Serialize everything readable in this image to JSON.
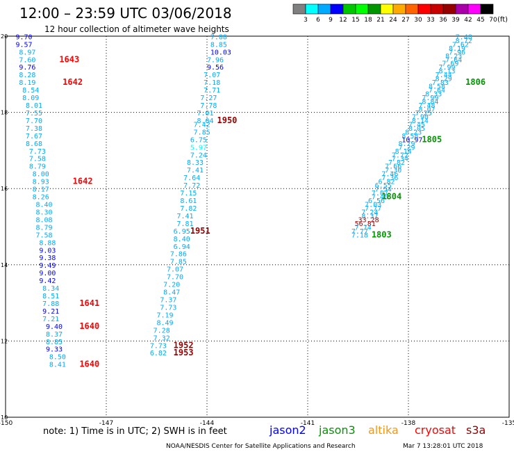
{
  "header": {
    "title": "12:00 – 23:59 UTC 03/06/2018",
    "subtitle": "12 hour collection of altimeter wave heights",
    "units": "(ft)"
  },
  "colorbar": {
    "colors": [
      "#808080",
      "#00ffff",
      "#00aaff",
      "#0000ff",
      "#00c800",
      "#00ff00",
      "#009600",
      "#ffff00",
      "#ffaa00",
      "#ff6400",
      "#ff0000",
      "#c80000",
      "#960000",
      "#aa00aa",
      "#ff00ff",
      "#000000"
    ],
    "labels": [
      "3",
      "6",
      "9",
      "12",
      "15",
      "18",
      "21",
      "24",
      "27",
      "30",
      "33",
      "36",
      "39",
      "42",
      "45",
      "70"
    ]
  },
  "footer": {
    "note": "note: 1) Time is in UTC; 2) SWH is in feet",
    "credit": "NOAA/NESDIS Center for Satellite Applications and Research",
    "timestamp": "Mar  7 13:28:01 UTC 2018",
    "satellites": [
      {
        "name": "jason2",
        "color": "#0000ff"
      },
      {
        "name": "jason3",
        "color": "#009600"
      },
      {
        "name": "altika",
        "color": "#ff9600"
      },
      {
        "name": "cryosat",
        "color": "#ff0000"
      },
      {
        "name": "s3a",
        "color": "#960000"
      }
    ]
  },
  "chart_data": {
    "type": "scatter",
    "xlim": [
      -150,
      -135
    ],
    "ylim": [
      10,
      20
    ],
    "xticks": [
      -150,
      -147,
      -144,
      -141,
      -138,
      -135
    ],
    "yticks": [
      10,
      12,
      14,
      16,
      18,
      20
    ],
    "xtick_labels": [
      "-150",
      "-147",
      "-144",
      "-141",
      "-138",
      "-135"
    ],
    "ytick_labels": [
      "10",
      "12",
      "14",
      "16",
      "18",
      "20"
    ],
    "grid": true,
    "level_colors": {
      "3": "#00ffff",
      "6": "#00aaff",
      "9": "#0000ff",
      "12": "#00c800"
    },
    "tracks": [
      {
        "satellite": "jason2",
        "points": [
          {
            "x": -149.7,
            "y": 19.92,
            "v": "9.70"
          },
          {
            "x": -149.7,
            "y": 19.72,
            "v": "9.57"
          },
          {
            "x": -149.6,
            "y": 19.52,
            "v": "8.97"
          },
          {
            "x": -149.6,
            "y": 19.32,
            "v": "7.60"
          },
          {
            "x": -149.6,
            "y": 19.12,
            "v": "9.76"
          },
          {
            "x": -149.6,
            "y": 18.92,
            "v": "8.28"
          },
          {
            "x": -149.6,
            "y": 18.72,
            "v": "8.19"
          },
          {
            "x": -149.5,
            "y": 18.52,
            "v": "8.54"
          },
          {
            "x": -149.5,
            "y": 18.32,
            "v": "8.09"
          },
          {
            "x": -149.4,
            "y": 18.12,
            "v": "8.01"
          },
          {
            "x": -149.4,
            "y": 17.92,
            "v": "7.55"
          },
          {
            "x": -149.4,
            "y": 17.72,
            "v": "7.70"
          },
          {
            "x": -149.4,
            "y": 17.52,
            "v": "7.38"
          },
          {
            "x": -149.4,
            "y": 17.32,
            "v": "7.67"
          },
          {
            "x": -149.4,
            "y": 17.12,
            "v": "8.68"
          },
          {
            "x": -149.3,
            "y": 16.92,
            "v": "7.73"
          },
          {
            "x": -149.3,
            "y": 16.72,
            "v": "7.58"
          },
          {
            "x": -149.3,
            "y": 16.52,
            "v": "8.79"
          },
          {
            "x": -149.2,
            "y": 16.32,
            "v": "8.00"
          },
          {
            "x": -149.2,
            "y": 16.12,
            "v": "8.93"
          },
          {
            "x": -149.2,
            "y": 15.92,
            "v": "8.17"
          },
          {
            "x": -149.2,
            "y": 15.72,
            "v": "8.26"
          },
          {
            "x": -149.1,
            "y": 15.52,
            "v": "8.40"
          },
          {
            "x": -149.1,
            "y": 15.32,
            "v": "8.30"
          },
          {
            "x": -149.1,
            "y": 15.12,
            "v": "8.08"
          },
          {
            "x": -149.1,
            "y": 14.92,
            "v": "8.79"
          },
          {
            "x": -149.1,
            "y": 14.72,
            "v": "7.58"
          },
          {
            "x": -149.0,
            "y": 14.52,
            "v": "8.88"
          },
          {
            "x": -149.0,
            "y": 14.32,
            "v": "9.03"
          },
          {
            "x": -149.0,
            "y": 14.12,
            "v": "9.38"
          },
          {
            "x": -149.0,
            "y": 13.92,
            "v": "9.49"
          },
          {
            "x": -149.0,
            "y": 13.72,
            "v": "9.00"
          },
          {
            "x": -149.0,
            "y": 13.52,
            "v": "9.42"
          },
          {
            "x": -148.9,
            "y": 13.32,
            "v": "8.34"
          },
          {
            "x": -148.9,
            "y": 13.12,
            "v": "8.51"
          },
          {
            "x": -148.9,
            "y": 12.92,
            "v": "7.88"
          },
          {
            "x": -148.9,
            "y": 12.72,
            "v": "9.21"
          },
          {
            "x": -148.9,
            "y": 12.52,
            "v": "7.21"
          },
          {
            "x": -148.8,
            "y": 12.32,
            "v": "9.40"
          },
          {
            "x": -148.8,
            "y": 12.12,
            "v": "8.37"
          },
          {
            "x": -148.8,
            "y": 11.92,
            "v": "8.85"
          },
          {
            "x": -148.8,
            "y": 11.72,
            "v": "9.33"
          },
          {
            "x": -148.7,
            "y": 11.52,
            "v": "8.50"
          },
          {
            "x": -148.7,
            "y": 11.32,
            "v": "8.41"
          }
        ]
      },
      {
        "satellite": "jason3",
        "points": [
          {
            "x": -143.9,
            "y": 19.92,
            "v": "7.88"
          },
          {
            "x": -143.9,
            "y": 19.72,
            "v": "8.85"
          },
          {
            "x": -143.9,
            "y": 19.52,
            "v": "10.03"
          },
          {
            "x": -144.0,
            "y": 19.32,
            "v": "7.96"
          },
          {
            "x": -144.0,
            "y": 19.12,
            "v": "9.56"
          },
          {
            "x": -144.1,
            "y": 18.92,
            "v": "7.07"
          },
          {
            "x": -144.1,
            "y": 18.72,
            "v": "7.18"
          },
          {
            "x": -144.1,
            "y": 18.52,
            "v": "7.71"
          },
          {
            "x": -144.2,
            "y": 18.32,
            "v": "7.27"
          },
          {
            "x": -144.2,
            "y": 18.12,
            "v": "7.78"
          },
          {
            "x": -144.3,
            "y": 17.92,
            "v": "7.01"
          },
          {
            "x": -144.3,
            "y": 17.72,
            "v": "8.04"
          },
          {
            "x": -144.4,
            "y": 17.62,
            "v": "7.42"
          },
          {
            "x": -144.4,
            "y": 17.42,
            "v": "7.85"
          },
          {
            "x": -144.5,
            "y": 17.22,
            "v": "6.75"
          },
          {
            "x": -144.5,
            "y": 17.02,
            "v": "5.97"
          },
          {
            "x": -144.5,
            "y": 16.82,
            "v": "7.24"
          },
          {
            "x": -144.6,
            "y": 16.62,
            "v": "8.33"
          },
          {
            "x": -144.6,
            "y": 16.42,
            "v": "7.41"
          },
          {
            "x": -144.7,
            "y": 16.22,
            "v": "7.64"
          },
          {
            "x": -144.7,
            "y": 16.02,
            "v": "7.72"
          },
          {
            "x": -144.8,
            "y": 15.82,
            "v": "7.15"
          },
          {
            "x": -144.8,
            "y": 15.62,
            "v": "8.61"
          },
          {
            "x": -144.8,
            "y": 15.42,
            "v": "7.82"
          },
          {
            "x": -144.9,
            "y": 15.22,
            "v": "7.41"
          },
          {
            "x": -144.9,
            "y": 15.02,
            "v": "7.81"
          },
          {
            "x": -145.0,
            "y": 14.82,
            "v": "6.95"
          },
          {
            "x": -145.0,
            "y": 14.62,
            "v": "8.40"
          },
          {
            "x": -145.0,
            "y": 14.42,
            "v": "6.94"
          },
          {
            "x": -145.1,
            "y": 14.22,
            "v": "7.86"
          },
          {
            "x": -145.1,
            "y": 14.02,
            "v": "7.85"
          },
          {
            "x": -145.2,
            "y": 13.82,
            "v": "7.07"
          },
          {
            "x": -145.2,
            "y": 13.62,
            "v": "7.70"
          },
          {
            "x": -145.3,
            "y": 13.42,
            "v": "7.20"
          },
          {
            "x": -145.3,
            "y": 13.22,
            "v": "8.47"
          },
          {
            "x": -145.4,
            "y": 13.02,
            "v": "7.37"
          },
          {
            "x": -145.4,
            "y": 12.82,
            "v": "7.73"
          },
          {
            "x": -145.5,
            "y": 12.62,
            "v": "7.19"
          },
          {
            "x": -145.5,
            "y": 12.42,
            "v": "8.49"
          },
          {
            "x": -145.6,
            "y": 12.22,
            "v": "7.28"
          },
          {
            "x": -145.6,
            "y": 12.02,
            "v": "7.32"
          },
          {
            "x": -145.7,
            "y": 11.82,
            "v": "7.73"
          },
          {
            "x": -145.7,
            "y": 11.62,
            "v": "6.82"
          }
        ]
      },
      {
        "satellite": "jason3",
        "points": [
          {
            "x": -136.6,
            "y": 19.92,
            "v": "7.48"
          },
          {
            "x": -136.6,
            "y": 19.82,
            "v": "8.72"
          },
          {
            "x": -136.7,
            "y": 19.72,
            "v": "7.62"
          },
          {
            "x": -136.8,
            "y": 19.62,
            "v": "8.19"
          },
          {
            "x": -136.8,
            "y": 19.52,
            "v": "7.96"
          },
          {
            "x": -136.9,
            "y": 19.42,
            "v": "8.23"
          },
          {
            "x": -136.9,
            "y": 19.32,
            "v": "7.64"
          },
          {
            "x": -137.0,
            "y": 19.22,
            "v": "7.69"
          },
          {
            "x": -137.1,
            "y": 19.12,
            "v": "7.99"
          },
          {
            "x": -137.1,
            "y": 19.02,
            "v": "8.13"
          },
          {
            "x": -137.2,
            "y": 18.92,
            "v": "7.44"
          },
          {
            "x": -137.2,
            "y": 18.82,
            "v": "8.29"
          },
          {
            "x": -137.3,
            "y": 18.72,
            "v": "7.83"
          },
          {
            "x": -137.4,
            "y": 18.62,
            "v": "8.58"
          },
          {
            "x": -137.4,
            "y": 18.52,
            "v": "7.64"
          },
          {
            "x": -137.5,
            "y": 18.42,
            "v": "8.33"
          },
          {
            "x": -137.6,
            "y": 18.32,
            "v": "7.99"
          },
          {
            "x": -137.6,
            "y": 18.22,
            "v": "8.84"
          },
          {
            "x": -137.7,
            "y": 18.12,
            "v": "7.48"
          },
          {
            "x": -137.7,
            "y": 18.02,
            "v": "8.07"
          },
          {
            "x": -137.8,
            "y": 17.92,
            "v": "7.25"
          },
          {
            "x": -137.9,
            "y": 17.82,
            "v": "7.90"
          },
          {
            "x": -137.9,
            "y": 17.72,
            "v": "8.14"
          },
          {
            "x": -138.0,
            "y": 17.62,
            "v": "7.45"
          },
          {
            "x": -138.0,
            "y": 17.52,
            "v": "8.05"
          },
          {
            "x": -138.1,
            "y": 17.42,
            "v": "8.23"
          },
          {
            "x": -138.2,
            "y": 17.32,
            "v": "8.58"
          },
          {
            "x": -138.2,
            "y": 17.22,
            "v": "10.97"
          },
          {
            "x": -138.3,
            "y": 17.12,
            "v": "8.79"
          },
          {
            "x": -138.3,
            "y": 17.02,
            "v": "7.29"
          },
          {
            "x": -138.4,
            "y": 16.92,
            "v": "8.14"
          },
          {
            "x": -138.5,
            "y": 16.82,
            "v": "7.72"
          },
          {
            "x": -138.5,
            "y": 16.72,
            "v": "7.34"
          },
          {
            "x": -138.6,
            "y": 16.62,
            "v": "7.82"
          },
          {
            "x": -138.7,
            "y": 16.52,
            "v": "7.66"
          },
          {
            "x": -138.7,
            "y": 16.42,
            "v": "7.30"
          },
          {
            "x": -138.8,
            "y": 16.32,
            "v": "7.46"
          },
          {
            "x": -138.8,
            "y": 16.22,
            "v": "7.36"
          },
          {
            "x": -138.9,
            "y": 16.12,
            "v": "6.82"
          },
          {
            "x": -139.0,
            "y": 16.02,
            "v": "6.55"
          },
          {
            "x": -139.0,
            "y": 15.92,
            "v": "7.54"
          },
          {
            "x": -139.1,
            "y": 15.82,
            "v": "7.07"
          },
          {
            "x": -139.1,
            "y": 15.72,
            "v": "7.40"
          },
          {
            "x": -139.2,
            "y": 15.62,
            "v": "6.56"
          },
          {
            "x": -139.3,
            "y": 15.52,
            "v": "7.03"
          },
          {
            "x": -139.3,
            "y": 15.42,
            "v": "7.77"
          },
          {
            "x": -139.4,
            "y": 15.32,
            "v": "7.24"
          },
          {
            "x": -139.4,
            "y": 15.22,
            "v": "8.37"
          },
          {
            "x": -139.5,
            "y": 15.12,
            "v": "33.28"
          },
          {
            "x": -139.6,
            "y": 15.02,
            "v": "56.81"
          },
          {
            "x": -139.6,
            "y": 14.92,
            "v": "7.74"
          },
          {
            "x": -139.7,
            "y": 14.82,
            "v": "7.77"
          },
          {
            "x": -139.7,
            "y": 14.72,
            "v": "7.18"
          }
        ]
      }
    ],
    "time_labels": [
      {
        "x": -148.4,
        "y": 19.32,
        "text": "1643",
        "satellite": "cryosat"
      },
      {
        "x": -148.3,
        "y": 18.72,
        "text": "1642",
        "satellite": "cryosat"
      },
      {
        "x": -148.0,
        "y": 16.12,
        "text": "1642",
        "satellite": "cryosat"
      },
      {
        "x": -147.8,
        "y": 12.92,
        "text": "1641",
        "satellite": "cryosat"
      },
      {
        "x": -147.8,
        "y": 12.32,
        "text": "1640",
        "satellite": "cryosat"
      },
      {
        "x": -147.8,
        "y": 11.32,
        "text": "1640",
        "satellite": "cryosat"
      },
      {
        "x": -143.7,
        "y": 17.72,
        "text": "1950",
        "satellite": "s3a"
      },
      {
        "x": -144.5,
        "y": 14.82,
        "text": "1951",
        "satellite": "s3a"
      },
      {
        "x": -145.0,
        "y": 11.82,
        "text": "1952",
        "satellite": "s3a"
      },
      {
        "x": -145.0,
        "y": 11.62,
        "text": "1953",
        "satellite": "s3a"
      },
      {
        "x": -136.3,
        "y": 18.72,
        "text": "1806",
        "satellite": "jason3"
      },
      {
        "x": -137.6,
        "y": 17.22,
        "text": "1805",
        "satellite": "jason3"
      },
      {
        "x": -138.8,
        "y": 15.72,
        "text": "1804",
        "satellite": "jason3"
      },
      {
        "x": -139.1,
        "y": 14.72,
        "text": "1803",
        "satellite": "jason3"
      }
    ]
  }
}
